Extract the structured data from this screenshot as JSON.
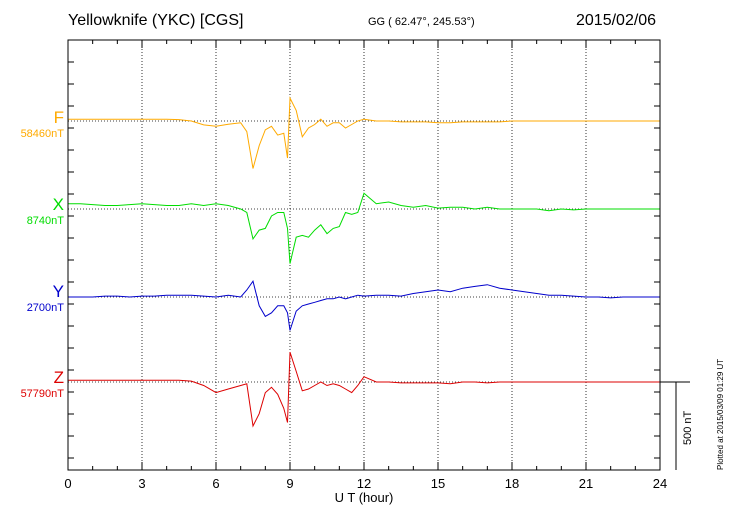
{
  "header": {
    "title": "Yellowknife (YKC)  [CGS]",
    "coords": "GG ( 62.47°, 245.53°)",
    "date": "2015/02/06"
  },
  "plotted_note": "Plotted at 2015/03/09 01:29 UT",
  "colors": {
    "F": "#ffaa00",
    "X": "#00dd00",
    "Y": "#0000cc",
    "Z": "#dd0000",
    "grid": "#000000"
  },
  "chart_data": {
    "type": "line",
    "title": "Yellowknife (YKC)  [CGS]",
    "xlabel": "U T (hour)",
    "ylabel": "",
    "xlim": [
      0,
      24
    ],
    "x_ticks": [
      0,
      3,
      6,
      9,
      12,
      15,
      18,
      21,
      24
    ],
    "grid": true,
    "scale_bar": {
      "label": "500 nT",
      "value_nT": 500
    },
    "x": [
      0,
      0.5,
      1,
      1.5,
      2,
      2.5,
      3,
      3.5,
      4,
      4.5,
      5,
      5.5,
      6,
      6.5,
      7,
      7.25,
      7.5,
      7.75,
      8,
      8.25,
      8.5,
      8.75,
      8.9,
      9,
      9.25,
      9.5,
      9.75,
      10,
      10.25,
      10.5,
      10.75,
      11,
      11.25,
      11.5,
      11.75,
      12,
      12.5,
      13,
      13.5,
      14,
      14.5,
      15,
      15.5,
      16,
      16.5,
      17,
      17.5,
      18,
      18.5,
      19,
      19.5,
      20,
      20.5,
      21,
      21.5,
      22,
      22.5,
      23,
      23.5,
      24
    ],
    "series": [
      {
        "name": "F",
        "baseline_label": "58460nT",
        "values": [
          10,
          10,
          10,
          10,
          10,
          10,
          10,
          10,
          10,
          8,
          0,
          -22,
          -30,
          -18,
          -10,
          -60,
          -270,
          -140,
          -50,
          -30,
          -80,
          -70,
          -210,
          130,
          60,
          -90,
          -40,
          -20,
          10,
          -30,
          -10,
          -10,
          -40,
          -20,
          0,
          10,
          0,
          0,
          -5,
          -5,
          -5,
          -10,
          -10,
          -5,
          -5,
          -5,
          -5,
          0,
          0,
          0,
          0,
          0,
          0,
          0,
          0,
          0,
          0,
          0,
          0,
          0
        ]
      },
      {
        "name": "X",
        "baseline_label": "8740nT",
        "values": [
          30,
          30,
          25,
          20,
          20,
          25,
          30,
          25,
          20,
          20,
          30,
          20,
          30,
          20,
          0,
          -20,
          -170,
          -120,
          -110,
          -40,
          -20,
          -20,
          -110,
          -310,
          -160,
          -150,
          -160,
          -120,
          -90,
          -140,
          -110,
          -100,
          -20,
          -30,
          -20,
          90,
          30,
          40,
          20,
          10,
          20,
          5,
          10,
          10,
          0,
          10,
          0,
          0,
          0,
          0,
          -10,
          0,
          -5,
          0,
          0,
          0,
          0,
          0,
          0,
          0
        ]
      },
      {
        "name": "Y",
        "baseline_label": "2700nT",
        "values": [
          0,
          0,
          0,
          5,
          5,
          0,
          5,
          5,
          10,
          10,
          10,
          5,
          0,
          10,
          0,
          40,
          90,
          -50,
          -110,
          -90,
          -50,
          -50,
          -90,
          -190,
          -80,
          -50,
          -40,
          -30,
          -20,
          -10,
          -10,
          0,
          -10,
          0,
          10,
          5,
          10,
          10,
          5,
          20,
          30,
          40,
          30,
          50,
          60,
          70,
          50,
          40,
          30,
          20,
          10,
          10,
          5,
          0,
          0,
          -5,
          0,
          0,
          0,
          0
        ]
      },
      {
        "name": "Z",
        "baseline_label": "57790nT",
        "values": [
          10,
          10,
          10,
          10,
          10,
          10,
          10,
          10,
          10,
          10,
          5,
          -20,
          -60,
          -40,
          -20,
          -10,
          -250,
          -180,
          -60,
          -30,
          -70,
          -150,
          -230,
          170,
          60,
          -50,
          -40,
          -20,
          0,
          -20,
          -10,
          -20,
          -40,
          -60,
          -20,
          30,
          0,
          0,
          -5,
          -5,
          -5,
          -5,
          -10,
          0,
          0,
          -5,
          0,
          0,
          0,
          0,
          0,
          0,
          0,
          0,
          0,
          0,
          0,
          0,
          0,
          0
        ]
      }
    ]
  }
}
